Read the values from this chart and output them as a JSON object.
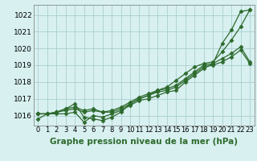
{
  "xlabel": "Graphe pression niveau de la mer (hPa)",
  "x_hours": [
    0,
    1,
    2,
    3,
    4,
    5,
    6,
    7,
    8,
    9,
    10,
    11,
    12,
    13,
    14,
    15,
    16,
    17,
    18,
    19,
    20,
    21,
    22,
    23
  ],
  "series": [
    [
      1015.8,
      1016.1,
      1016.1,
      1016.1,
      1016.2,
      1015.6,
      1016.0,
      1015.9,
      1016.1,
      1016.3,
      1016.6,
      1016.9,
      1017.0,
      1017.2,
      1017.4,
      1017.5,
      1018.0,
      1018.4,
      1018.8,
      1019.1,
      1020.3,
      1021.1,
      1022.2,
      1022.3
    ],
    [
      1016.1,
      1016.1,
      1016.2,
      1016.3,
      1016.4,
      1016.2,
      1016.3,
      1016.2,
      1016.2,
      1016.4,
      1016.7,
      1017.0,
      1017.2,
      1017.4,
      1017.5,
      1017.7,
      1018.1,
      1018.5,
      1018.9,
      1019.0,
      1019.2,
      1019.5,
      1019.9,
      1019.1
    ],
    [
      1016.1,
      1016.1,
      1016.2,
      1016.4,
      1016.5,
      1016.3,
      1016.4,
      1016.2,
      1016.3,
      1016.5,
      1016.8,
      1017.1,
      1017.3,
      1017.5,
      1017.6,
      1017.8,
      1018.2,
      1018.6,
      1019.0,
      1019.1,
      1019.4,
      1019.7,
      1020.1,
      1019.2
    ],
    [
      1016.1,
      1016.1,
      1016.2,
      1016.4,
      1016.7,
      1015.9,
      1015.8,
      1015.7,
      1015.9,
      1016.2,
      1016.7,
      1017.0,
      1017.2,
      1017.5,
      1017.7,
      1018.1,
      1018.5,
      1018.9,
      1019.1,
      1019.2,
      1019.8,
      1020.5,
      1021.3,
      1022.3
    ]
  ],
  "line_color": "#2d6a2d",
  "marker": "D",
  "markersize": 2.5,
  "linewidth": 0.9,
  "bg_color": "#d8f0f0",
  "grid_color": "#aacfcf",
  "ylim": [
    1015.4,
    1022.6
  ],
  "yticks": [
    1016,
    1017,
    1018,
    1019,
    1020,
    1021,
    1022
  ],
  "xlim": [
    -0.5,
    23.5
  ],
  "xticks": [
    0,
    1,
    2,
    3,
    4,
    5,
    6,
    7,
    8,
    9,
    10,
    11,
    12,
    13,
    14,
    15,
    16,
    17,
    18,
    19,
    20,
    21,
    22,
    23
  ],
  "xlabel_fontsize": 7.5,
  "ytick_fontsize": 6.5,
  "xtick_fontsize": 6.0
}
